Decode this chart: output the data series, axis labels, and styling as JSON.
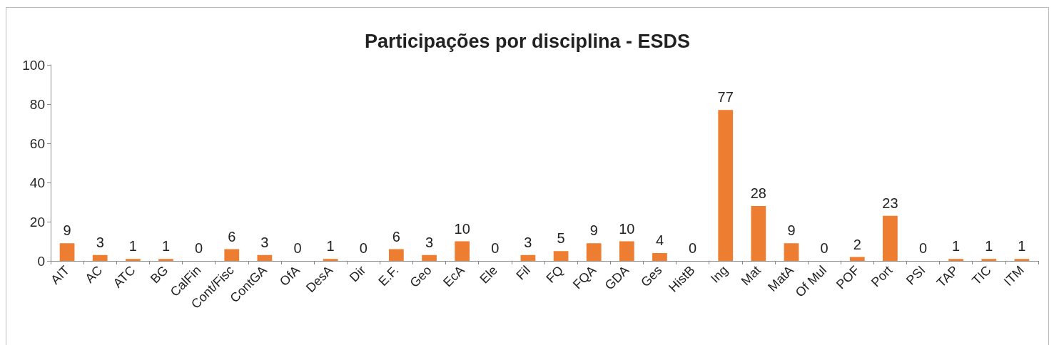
{
  "chart_data": {
    "type": "bar",
    "title": "Participações por disciplina - ESDS",
    "categories": [
      "AIT",
      "AC",
      "ATC",
      "BG",
      "CalFin",
      "Cont/Fisc",
      "ContGA",
      "OfA",
      "DesA",
      "Dir",
      "E.F.",
      "Geo",
      "EcA",
      "Ele",
      "Fil",
      "FQ",
      "FQA",
      "GDA",
      "Ges",
      "HistB",
      "Ing",
      "Mat",
      "MatA",
      "Of Mul",
      "POF",
      "Port",
      "PSI",
      "TAP",
      "TIC",
      "ITM"
    ],
    "values": [
      9,
      3,
      1,
      1,
      0,
      6,
      3,
      0,
      1,
      0,
      6,
      3,
      10,
      0,
      3,
      5,
      9,
      10,
      4,
      0,
      77,
      28,
      9,
      0,
      2,
      23,
      0,
      1,
      1,
      1
    ],
    "color": "#ed7d31",
    "ylim": [
      0,
      100
    ],
    "yticks": [
      0,
      20,
      40,
      60,
      80,
      100
    ],
    "grid": false,
    "data_labels": true
  }
}
